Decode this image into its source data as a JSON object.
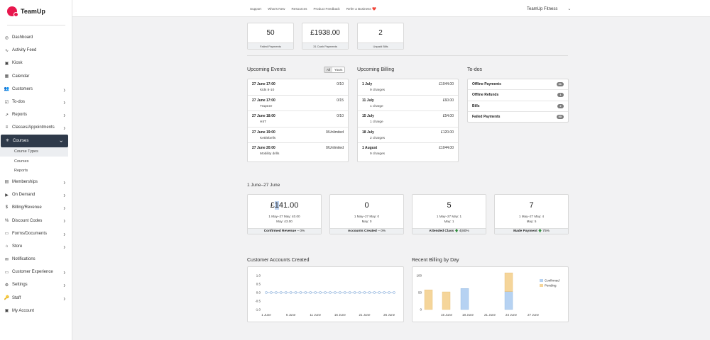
{
  "app": {
    "name": "TeamUp"
  },
  "topbar": {
    "links": [
      "Support",
      "What's New",
      "Resources",
      "Product Feedback",
      "Refer a Business ❤️"
    ],
    "account": "TeamUp Fitness"
  },
  "sidebar": {
    "items": [
      {
        "label": "Dashboard",
        "icon": "dashboard-icon",
        "glyph": "◎",
        "chevron": false
      },
      {
        "label": "Activity Feed",
        "icon": "activity-icon",
        "glyph": "∿",
        "chevron": false
      },
      {
        "label": "Kiosk",
        "icon": "kiosk-icon",
        "glyph": "▣",
        "chevron": false
      },
      {
        "label": "Calendar",
        "icon": "calendar-icon",
        "glyph": "▦",
        "chevron": false
      },
      {
        "label": "Customers",
        "icon": "customers-icon",
        "glyph": "👥",
        "chevron": true
      },
      {
        "label": "To-dos",
        "icon": "todos-icon",
        "glyph": "☑",
        "chevron": true
      },
      {
        "label": "Reports",
        "icon": "reports-icon",
        "glyph": "↗",
        "chevron": true
      },
      {
        "label": "Classes/Appointments",
        "icon": "classes-icon",
        "glyph": "≡",
        "chevron": true
      },
      {
        "label": "Courses",
        "icon": "courses-icon",
        "glyph": "✳",
        "chevron": true,
        "active": true
      },
      {
        "label": "Memberships",
        "icon": "memberships-icon",
        "glyph": "▤",
        "chevron": true
      },
      {
        "label": "On Demand",
        "icon": "on-demand-icon",
        "glyph": "▶",
        "chevron": true
      },
      {
        "label": "Billing/Revenue",
        "icon": "billing-icon",
        "glyph": "$",
        "chevron": true
      },
      {
        "label": "Discount Codes",
        "icon": "discount-icon",
        "glyph": "%",
        "chevron": true
      },
      {
        "label": "Forms/Documents",
        "icon": "forms-icon",
        "glyph": "▭",
        "chevron": true
      },
      {
        "label": "Store",
        "icon": "store-icon",
        "glyph": "⌂",
        "chevron": true
      },
      {
        "label": "Notifications",
        "icon": "notifications-icon",
        "glyph": "✉",
        "chevron": false
      },
      {
        "label": "Customer Experience",
        "icon": "customer-experience-icon",
        "glyph": "▭",
        "chevron": true
      },
      {
        "label": "Settings",
        "icon": "settings-icon",
        "glyph": "⚙",
        "chevron": true
      },
      {
        "label": "Staff",
        "icon": "staff-icon",
        "glyph": "🔑",
        "chevron": true
      },
      {
        "label": "My Account",
        "icon": "my-account-icon",
        "glyph": "▣",
        "chevron": false
      }
    ],
    "courses_sub": [
      "Course Types",
      "Courses",
      "Reports"
    ]
  },
  "stats": [
    {
      "value": "50",
      "label": "Failed Payments"
    },
    {
      "value": "£1938.00",
      "label": "31 Cash Payments"
    },
    {
      "value": "2",
      "label": "Unpaid Bills"
    }
  ],
  "events": {
    "title": "Upcoming Events",
    "filters": [
      "All",
      "Yours"
    ],
    "rows": [
      {
        "when": "27 June 17:00",
        "name": "Kids 8-10",
        "count": "0/10"
      },
      {
        "when": "27 June 17:00",
        "name": "Trapeze",
        "count": "0/15"
      },
      {
        "when": "27 June 18:00",
        "name": "HIIT",
        "count": "0/10"
      },
      {
        "when": "27 June 19:00",
        "name": "Kettlebells",
        "count": "0/Unlimited"
      },
      {
        "when": "27 June 20:00",
        "name": "Mobility drills",
        "count": "0/Unlimited"
      }
    ]
  },
  "billing": {
    "title": "Upcoming Billing",
    "rows": [
      {
        "when": "1 July",
        "charges": "9 charges",
        "amount": "£1044.00"
      },
      {
        "when": "11 July",
        "charges": "1 charge",
        "amount": "£60.00"
      },
      {
        "when": "15 July",
        "charges": "1 charge",
        "amount": "£54.00"
      },
      {
        "when": "18 July",
        "charges": "2 charges",
        "amount": "£120.00"
      },
      {
        "when": "1 August",
        "charges": "9 charges",
        "amount": "£1044.00"
      }
    ]
  },
  "todos": {
    "title": "To-dos",
    "rows": [
      {
        "label": "Offline Payments",
        "count": "31"
      },
      {
        "label": "Offline Refunds",
        "count": "1"
      },
      {
        "label": "Bills",
        "count": "2"
      },
      {
        "label": "Failed Payments",
        "count": "50"
      }
    ]
  },
  "period": "1 June–27 June",
  "kpis": [
    {
      "num_pre": "£",
      "num_hl": "1",
      "num_post": "41.00",
      "line1": "1 May–27 May: £0.00",
      "line2": "May: £3.00",
      "label": "Confirmed Revenue",
      "arrow": "–",
      "change": "0%"
    },
    {
      "num_pre": "0",
      "num_hl": "",
      "num_post": "",
      "line1": "1 May–27 May: 0",
      "line2": "May: 0",
      "label": "Accounts Created",
      "arrow": "–",
      "change": "0%"
    },
    {
      "num_pre": "5",
      "num_hl": "",
      "num_post": "",
      "line1": "1 May–27 May: 1",
      "line2": "May: 1",
      "label": "Attended Class",
      "arrow": "🡅",
      "change": "4(80%"
    },
    {
      "num_pre": "7",
      "num_hl": "",
      "num_post": "",
      "line1": "1 May–27 May: 4",
      "line2": "May: 5",
      "label": "Made Payment",
      "arrow": "🡅",
      "change": "75%"
    }
  ],
  "chart_data": [
    {
      "type": "line",
      "title": "Customer Accounts Created",
      "x": [
        "1 June",
        "2 June",
        "3 June",
        "4 June",
        "5 June",
        "6 June",
        "7 June",
        "8 June",
        "9 June",
        "10 June",
        "11 June",
        "12 June",
        "13 June",
        "14 June",
        "15 June",
        "16 June",
        "17 June",
        "18 June",
        "19 June",
        "20 June",
        "21 June",
        "22 June",
        "23 June",
        "24 June",
        "25 June",
        "26 June",
        "27 June"
      ],
      "x_ticks": [
        "1 June",
        "6 June",
        "11 June",
        "16 June",
        "21 June",
        "26 June"
      ],
      "series": [
        {
          "values": [
            0,
            0,
            0,
            0,
            0,
            0,
            0,
            0,
            0,
            0,
            0,
            0,
            0,
            0,
            0,
            0,
            0,
            0,
            0,
            0,
            0,
            0,
            0,
            0,
            0,
            0,
            0
          ]
        }
      ],
      "ylim": [
        -1.0,
        1.0
      ],
      "y_ticks": [
        "1.0",
        "0.5",
        "0.0",
        "-0.5",
        "-1.0"
      ],
      "color": "#8fb3dd"
    },
    {
      "type": "bar",
      "title": "Recent Billing by Day",
      "x_ticks": [
        "15 June",
        "18 June",
        "21 June",
        "24 June",
        "27 June"
      ],
      "y_ticks": [
        "100",
        "50",
        "0"
      ],
      "ylim": [
        0,
        100
      ],
      "series": [
        {
          "name": "Confirmed",
          "color": "#b6d2f2",
          "values": [
            0,
            0,
            62,
            0,
            53
          ]
        },
        {
          "name": "Pending",
          "color": "#f5d59a",
          "values": [
            58,
            52,
            0,
            0,
            55
          ]
        }
      ],
      "legend": "top-right"
    }
  ]
}
